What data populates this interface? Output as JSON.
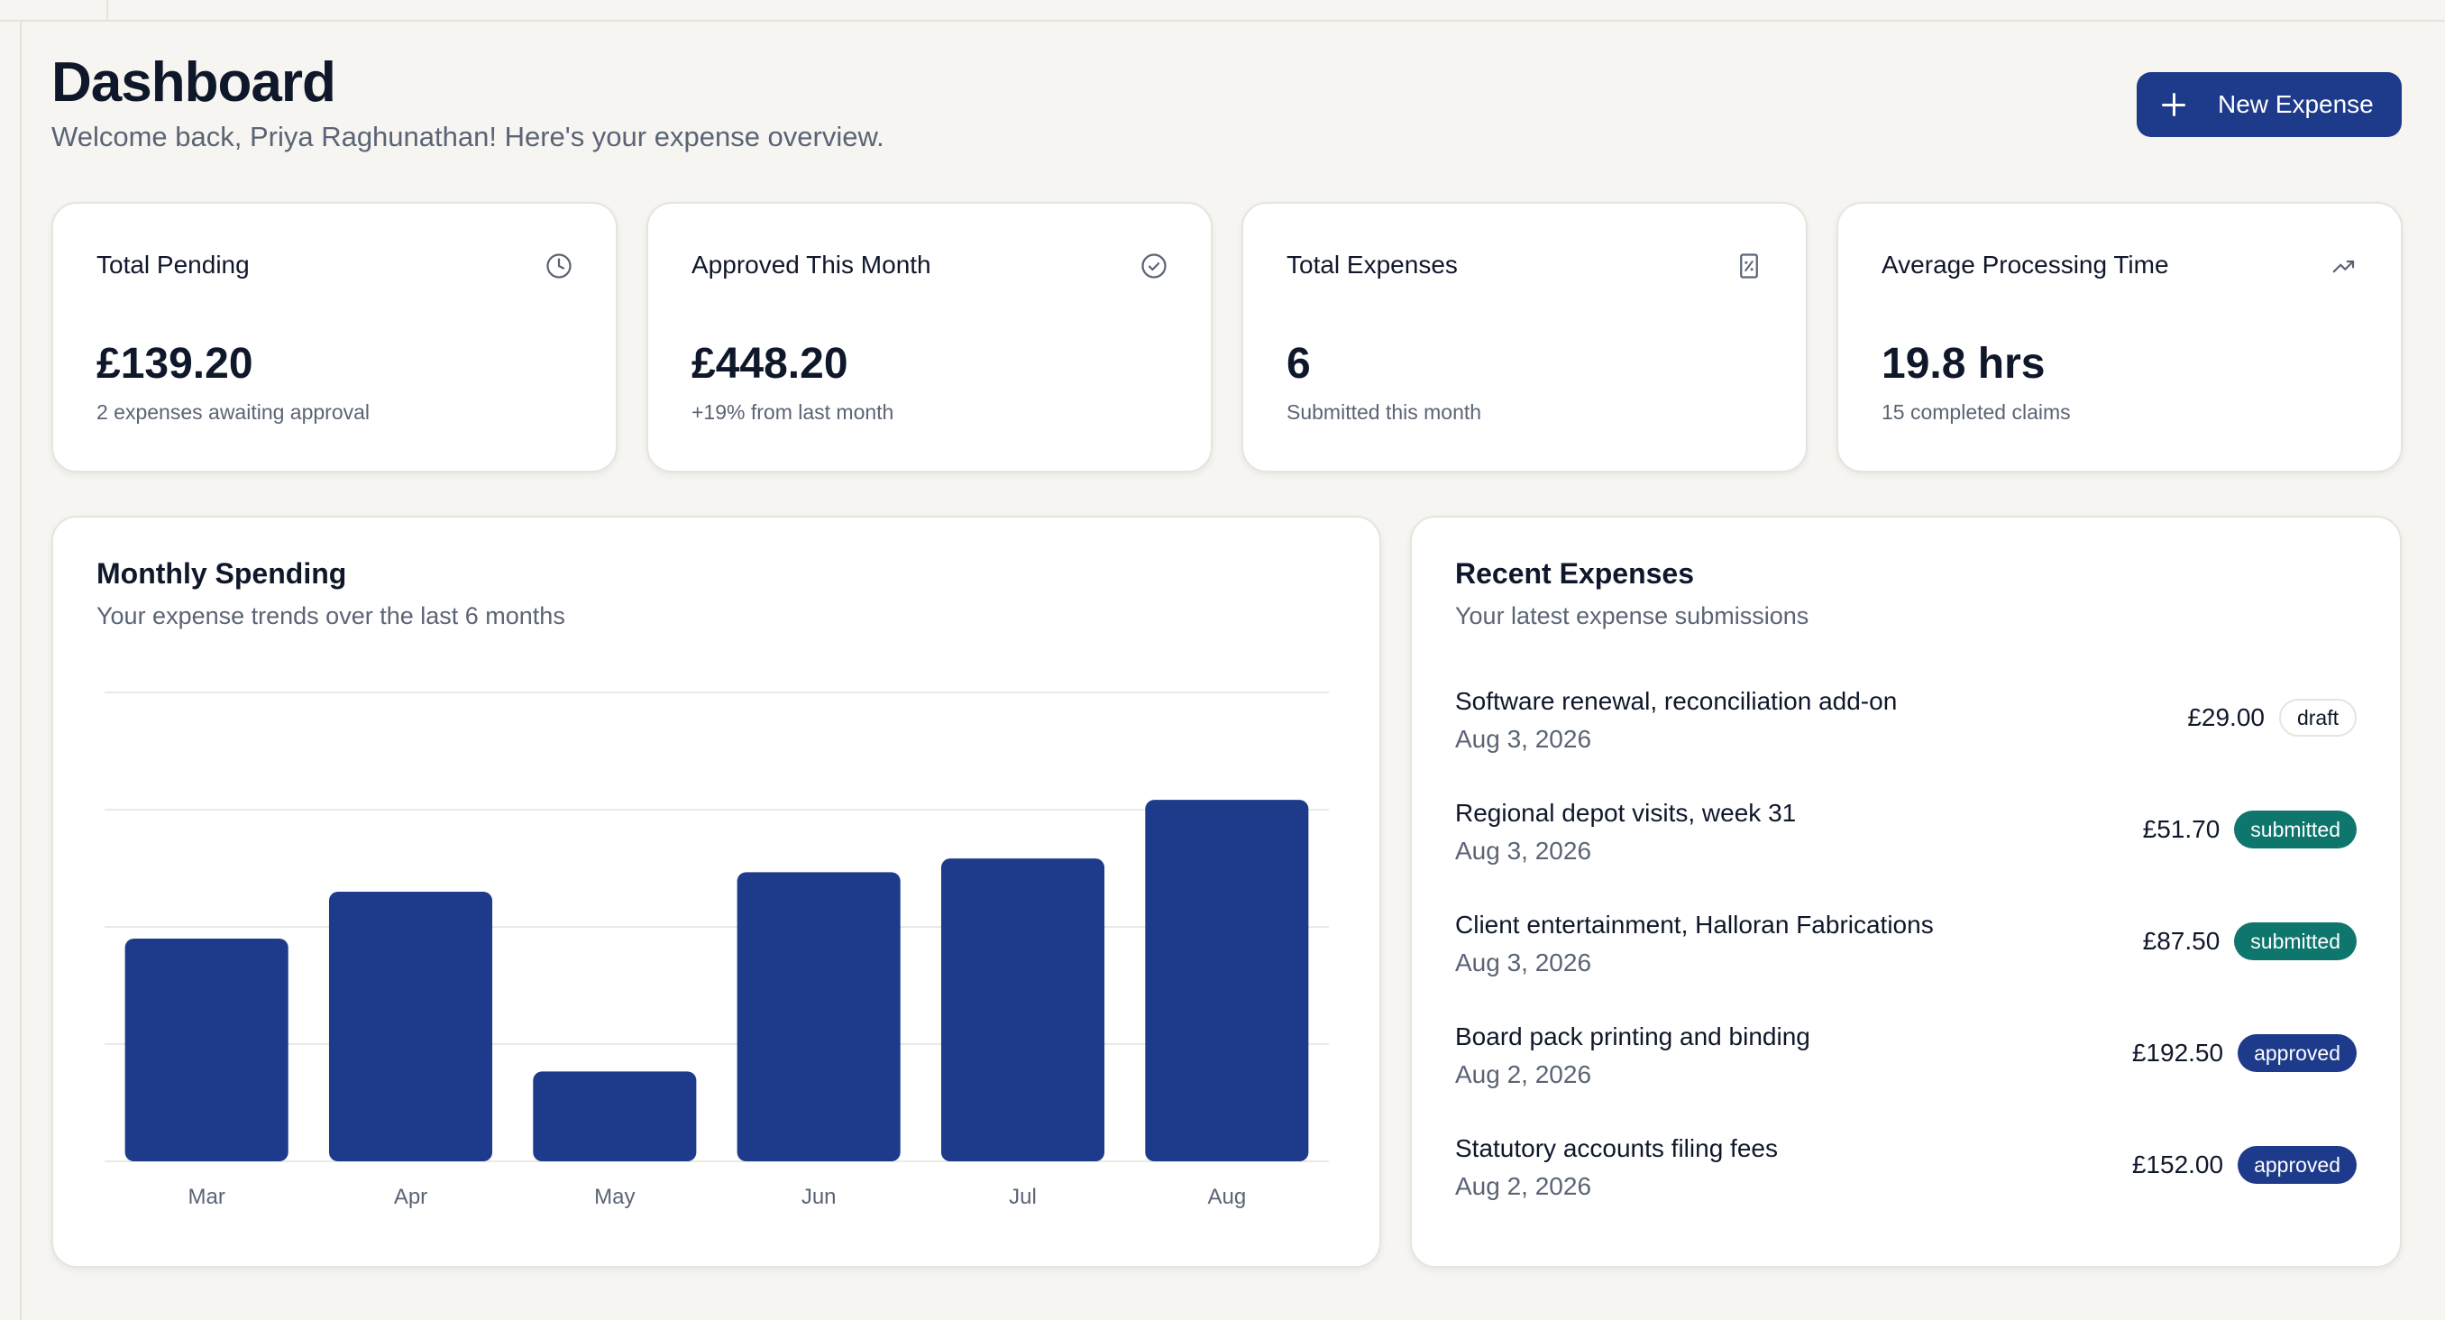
{
  "header": {
    "title": "Dashboard",
    "subtitle": "Welcome back, Priya Raghunathan! Here's your expense overview.",
    "new_button_label": "New Expense"
  },
  "stats": [
    {
      "label": "Total Pending",
      "value": "£139.20",
      "note": "2 expenses awaiting approval",
      "icon": "clock-icon"
    },
    {
      "label": "Approved This Month",
      "value": "£448.20",
      "note": "+19% from last month",
      "icon": "check-circle-icon"
    },
    {
      "label": "Total Expenses",
      "value": "6",
      "note": "Submitted this month",
      "icon": "receipt-icon"
    },
    {
      "label": "Average Processing Time",
      "value": "19.8 hrs",
      "note": "15 completed claims",
      "icon": "trending-up-icon"
    }
  ],
  "monthly_spending": {
    "title": "Monthly Spending",
    "subtitle": "Your expense trends over the last 6 months"
  },
  "chart_data": {
    "type": "bar",
    "categories": [
      "Mar",
      "Apr",
      "May",
      "Jun",
      "Jul",
      "Aug"
    ],
    "values": [
      570,
      690,
      230,
      740,
      775,
      925
    ],
    "ylim": [
      0,
      1200
    ],
    "grid": true,
    "bar_color": "#1e3a8a"
  },
  "recent": {
    "title": "Recent Expenses",
    "subtitle": "Your latest expense submissions",
    "items": [
      {
        "description": "Software renewal, reconciliation add-on",
        "date": "Aug 3, 2026",
        "amount": "£29.00",
        "status": "draft"
      },
      {
        "description": "Regional depot visits, week 31",
        "date": "Aug 3, 2026",
        "amount": "£51.70",
        "status": "submitted"
      },
      {
        "description": "Client entertainment, Halloran Fabrications",
        "date": "Aug 3, 2026",
        "amount": "£87.50",
        "status": "submitted"
      },
      {
        "description": "Board pack printing and binding",
        "date": "Aug 2, 2026",
        "amount": "£192.50",
        "status": "approved"
      },
      {
        "description": "Statutory accounts filing fees",
        "date": "Aug 2, 2026",
        "amount": "£152.00",
        "status": "approved"
      }
    ]
  },
  "colors": {
    "accent": "#1e3a8a",
    "submitted": "#0f766e",
    "background": "#f6f5f1"
  }
}
